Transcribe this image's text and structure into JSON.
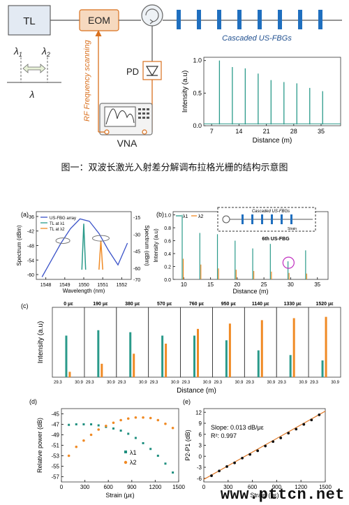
{
  "top": {
    "tl_label": "TL",
    "eom_label": "EOM",
    "pd_label": "PD",
    "vna_label": "VNA",
    "fbg_label": "Cascaded US-FBGs",
    "rf_label": "RF Frequency scanning",
    "lambda1": "λ",
    "lambda1_sub": "1",
    "lambda2": "λ",
    "lambda2_sub": "2",
    "lambda": "λ",
    "colors": {
      "orange": "#d9701e",
      "blue": "#1f6fbf",
      "teal": "#2a9a8a"
    }
  },
  "caption": "图一：双波长激光入射差分解调布拉格光栅的结构示意图",
  "panel_a": {
    "tag": "(a)",
    "legend": [
      "US-FBG array",
      "TL at λ1",
      "TL at λ2"
    ],
    "ylabel_left": "Spectrum (dBm)",
    "ylabel_right": "Spectrum (dBm)",
    "xlabel": "Wavelength (nm)"
  },
  "panel_b": {
    "tag": "(b)",
    "legend": [
      "λ1",
      "λ2"
    ],
    "inset_label": "Cascaded US-FBGs",
    "strain_label": "Strain",
    "annot": "6th US-FBG",
    "ylabel": "Intensity (a.u)",
    "xlabel": "Distance (m)"
  },
  "panel_c": {
    "tag": "(c)",
    "ylabel": "Intensity (a.u)",
    "xlabel": "Distance (m)",
    "strains": [
      "0 με",
      "190 με",
      "380 με",
      "570 με",
      "760 με",
      "950 με",
      "1140 με",
      "1330 με",
      "1520 με"
    ],
    "ticks": [
      "29.3",
      "30.9"
    ]
  },
  "panel_d": {
    "tag": "(d)",
    "ylabel": "Relative power (dB)",
    "xlabel": "Strain (με)",
    "legend": [
      "λ1",
      "λ2"
    ]
  },
  "panel_e": {
    "tag": "(e)",
    "ylabel": "P2-P1 (dB)",
    "xlabel": "Strain (με)",
    "slope_text": "Slope: 0.013 dB/με",
    "r2_text": "R²: 0.997"
  },
  "footer": "www.pttcn.net",
  "chart_data": [
    {
      "type": "line",
      "title": "",
      "xlabel": "Distance (m)",
      "ylabel": "Intensity (a.u)",
      "xlim": [
        5,
        40
      ],
      "ylim": [
        0,
        1.05
      ],
      "x_ticks": [
        7,
        14,
        21,
        28,
        35
      ],
      "y_ticks": [
        0.0,
        0.5,
        1.0
      ],
      "series": [
        {
          "x": [
            9,
            12.3,
            15.6,
            18.9,
            22.2,
            25.5,
            28.8,
            32.1,
            35.4
          ],
          "values": [
            1.0,
            0.9,
            0.88,
            0.8,
            0.7,
            0.67,
            0.65,
            0.58,
            0.53
          ]
        }
      ]
    },
    {
      "type": "line",
      "xlabel": "Wavelength (nm)",
      "ylabel": "Spectrum (dBm)",
      "xlim": [
        1547.5,
        1552.5
      ],
      "ylim": [
        -62,
        -34
      ],
      "x_ticks": [
        1548,
        1549,
        1550,
        1551,
        1552
      ],
      "y_ticks": [
        -60,
        -54,
        -48,
        -42,
        -36
      ],
      "y2_ticks": [
        -15,
        -30,
        -45,
        -60,
        -70
      ],
      "series": [
        {
          "name": "US-FBG array",
          "x": [
            1547.8,
            1548.3,
            1548.8,
            1549.3,
            1549.8,
            1550.3,
            1550.8,
            1551.3,
            1551.8,
            1552.3
          ],
          "values": [
            -61,
            -54,
            -47,
            -41,
            -37,
            -38,
            -43,
            -50,
            -56,
            -47
          ]
        },
        {
          "name": "TL at λ1",
          "x": [
            1549.9,
            1550.0,
            1550.1
          ],
          "values": [
            -58,
            -39,
            -58
          ]
        },
        {
          "name": "TL at λ2",
          "x": [
            1550.8,
            1550.9,
            1551.0
          ],
          "values": [
            -58,
            -46,
            -58
          ]
        }
      ]
    },
    {
      "type": "line",
      "xlabel": "Distance (m)",
      "ylabel": "Intensity (a.u)",
      "xlim": [
        8,
        37
      ],
      "ylim": [
        0,
        1.05
      ],
      "x_ticks": [
        10,
        15,
        20,
        25,
        30,
        35
      ],
      "y_ticks": [
        0.0,
        0.2,
        0.4,
        0.6,
        0.8,
        1.0
      ],
      "series": [
        {
          "name": "λ1",
          "x": [
            9.7,
            13,
            16.3,
            19.6,
            22.9,
            26.2,
            29.5,
            32.8
          ],
          "values": [
            1.0,
            0.72,
            0.7,
            0.6,
            0.48,
            0.55,
            0.28,
            0.45
          ]
        },
        {
          "name": "λ2",
          "x": [
            9.9,
            13.2,
            16.5,
            19.8,
            23.1,
            26.4,
            29.7,
            33.0
          ],
          "values": [
            0.32,
            0.23,
            0.17,
            0.15,
            0.13,
            0.12,
            0.1,
            0.09
          ]
        }
      ]
    },
    {
      "type": "line",
      "xlabel": "Distance (m)",
      "ylabel": "Intensity (a.u)",
      "categories": [
        "0 με",
        "190 με",
        "380 με",
        "570 με",
        "760 με",
        "950 με",
        "1140 με",
        "1330 με",
        "1520 με"
      ],
      "series": [
        {
          "name": "λ1",
          "values": [
            0.62,
            0.7,
            0.67,
            0.62,
            0.62,
            0.55,
            0.4,
            0.33,
            0.25
          ]
        },
        {
          "name": "λ2",
          "values": [
            0.08,
            0.2,
            0.35,
            0.5,
            0.72,
            0.8,
            0.85,
            0.88,
            0.9
          ]
        }
      ]
    },
    {
      "type": "scatter",
      "xlabel": "Strain (με)",
      "ylabel": "Relative power (dB)",
      "xlim": [
        0,
        1500
      ],
      "ylim": [
        -58,
        -44
      ],
      "x_ticks": [
        0,
        300,
        600,
        900,
        1200,
        1500
      ],
      "y_ticks": [
        -45,
        -47,
        -49,
        -51,
        -53,
        -55,
        -57
      ],
      "series": [
        {
          "name": "λ1",
          "x": [
            95,
            190,
            285,
            380,
            475,
            570,
            665,
            760,
            855,
            950,
            1045,
            1140,
            1235,
            1330,
            1425
          ],
          "values": [
            -47.1,
            -47.0,
            -47.0,
            -47.0,
            -47.2,
            -47.5,
            -47.8,
            -48.2,
            -48.8,
            -49.6,
            -50.6,
            -51.7,
            -53.0,
            -54.5,
            -56.2
          ]
        },
        {
          "name": "λ2",
          "x": [
            95,
            190,
            285,
            380,
            475,
            570,
            665,
            760,
            855,
            950,
            1045,
            1140,
            1235,
            1330,
            1425
          ],
          "values": [
            -53.0,
            -51.3,
            -50.1,
            -49.0,
            -48.0,
            -47.3,
            -46.7,
            -46.2,
            -45.9,
            -45.7,
            -45.7,
            -45.8,
            -46.2,
            -46.9,
            -47.7
          ]
        }
      ]
    },
    {
      "type": "scatter",
      "xlabel": "Strain (με)",
      "ylabel": "P2-P1 (dB)",
      "xlim": [
        0,
        1500
      ],
      "ylim": [
        -7,
        13
      ],
      "x_ticks": [
        0,
        300,
        600,
        900,
        1200,
        1500
      ],
      "y_ticks": [
        -6,
        -3,
        0,
        3,
        6,
        9,
        12
      ],
      "series": [
        {
          "name": "data",
          "x": [
            95,
            190,
            285,
            380,
            475,
            570,
            665,
            760,
            855,
            950,
            1045,
            1140,
            1235,
            1330,
            1425
          ],
          "values": [
            -5.3,
            -4.0,
            -2.8,
            -1.8,
            -0.5,
            0.5,
            1.5,
            2.8,
            4.0,
            5.0,
            6.3,
            7.4,
            8.7,
            9.9,
            11.3
          ]
        },
        {
          "name": "fit",
          "x": [
            0,
            1500
          ],
          "values": [
            -6.3,
            12.3
          ]
        }
      ]
    }
  ]
}
